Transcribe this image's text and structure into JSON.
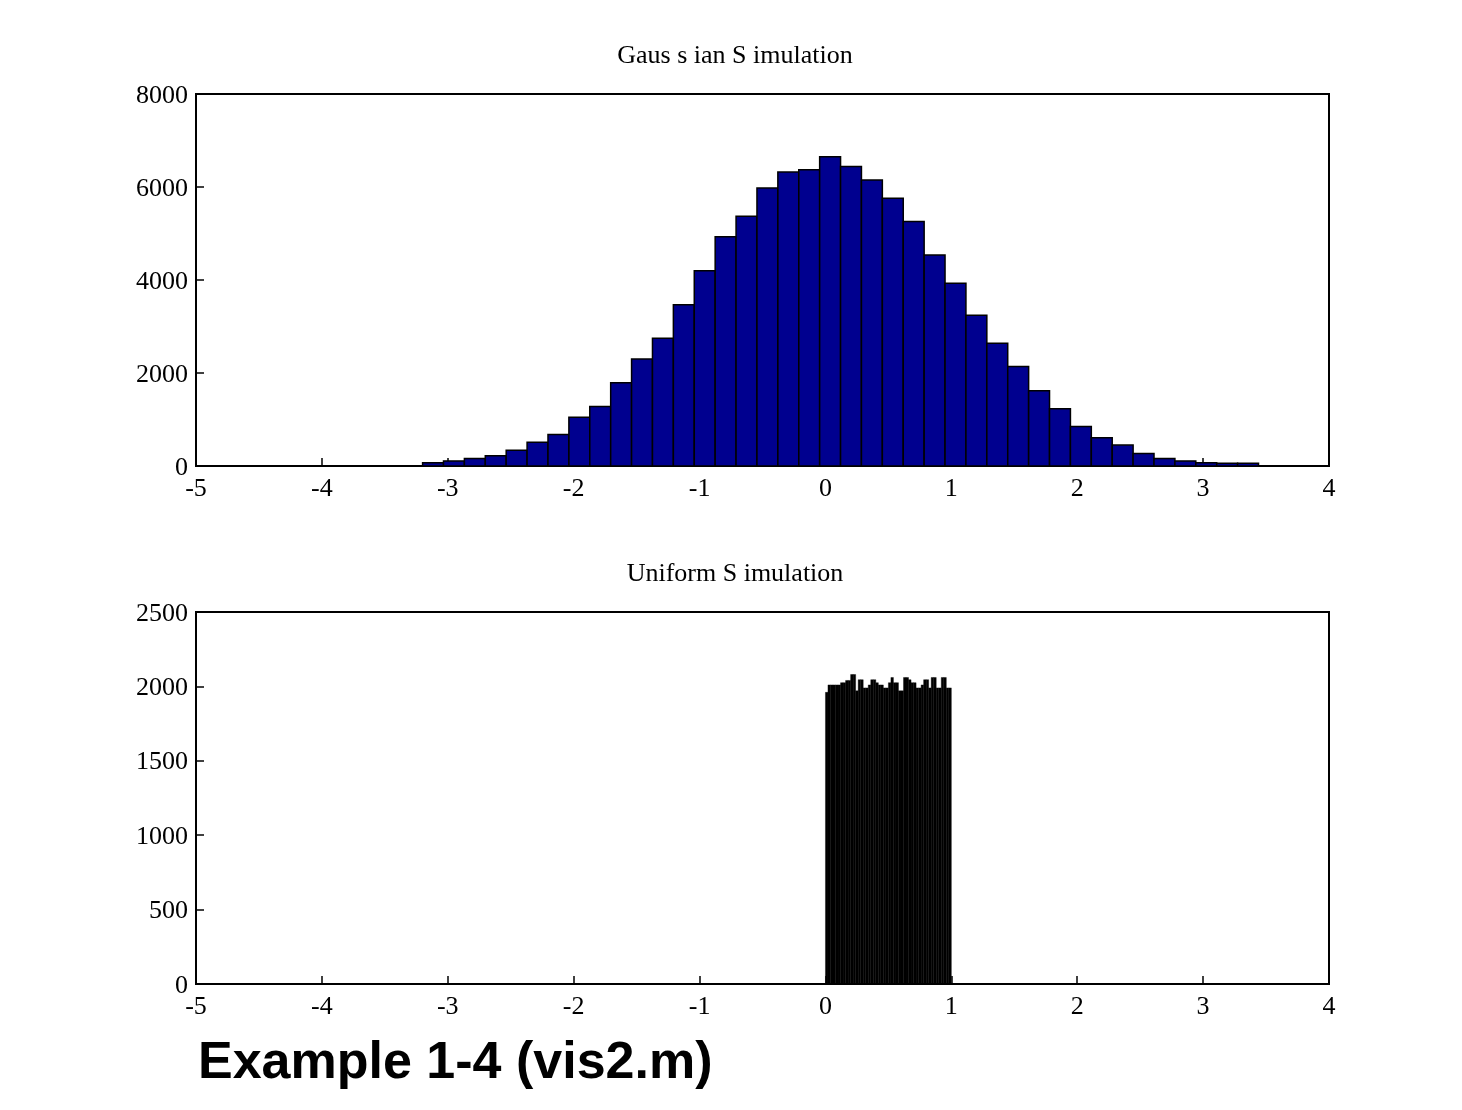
{
  "chart_data": [
    {
      "type": "histogram",
      "title": "Gaus s ian S imulation",
      "color": "#00008f",
      "bins": [
        -3.2,
        -3.034,
        -2.868,
        -2.702,
        -2.536,
        -2.37,
        -2.204,
        -2.038,
        -1.872,
        -1.706,
        -1.54,
        -1.374,
        -1.208,
        -1.042,
        -0.876,
        -0.71,
        -0.544,
        -0.378,
        -0.212,
        -0.046,
        0.12,
        0.286,
        0.452,
        0.618,
        0.784,
        0.95,
        1.116,
        1.282,
        1.448,
        1.614,
        1.78,
        1.946,
        2.112,
        2.278,
        2.444,
        2.61,
        2.776,
        2.942,
        3.108,
        3.274,
        3.44
      ],
      "values": [
        70,
        110,
        160,
        220,
        340,
        510,
        680,
        1050,
        1280,
        1790,
        2300,
        2750,
        3470,
        4200,
        4930,
        5370,
        5980,
        6320,
        6370,
        6650,
        6440,
        6150,
        5760,
        5260,
        4540,
        3930,
        3240,
        2640,
        2140,
        1620,
        1230,
        850,
        610,
        450,
        270,
        160,
        110,
        70,
        60,
        60
      ],
      "xlim": [
        -5,
        4
      ],
      "xticks": [
        -5,
        -4,
        -3,
        -2,
        -1,
        0,
        1,
        2,
        3,
        4
      ],
      "ylim": [
        0,
        8000
      ],
      "yticks": [
        0,
        2000,
        4000,
        6000,
        8000
      ]
    },
    {
      "type": "histogram",
      "title": "Uniform S imulation",
      "color": "#000000",
      "bins": [
        0,
        0.02,
        0.04,
        0.06,
        0.08,
        0.1,
        0.12,
        0.14,
        0.16,
        0.18,
        0.2,
        0.22,
        0.24,
        0.26,
        0.28,
        0.3,
        0.32,
        0.34,
        0.36,
        0.38,
        0.4,
        0.42,
        0.44,
        0.46,
        0.48,
        0.5,
        0.52,
        0.54,
        0.56,
        0.58,
        0.6,
        0.62,
        0.64,
        0.66,
        0.68,
        0.7,
        0.72,
        0.74,
        0.76,
        0.78,
        0.8,
        0.82,
        0.84,
        0.86,
        0.88,
        0.9,
        0.92,
        0.94,
        0.96,
        0.98,
        1
      ],
      "values": [
        1960,
        2010,
        2010,
        2010,
        2010,
        2010,
        2025,
        2025,
        2040,
        2040,
        2080,
        2080,
        1970,
        2045,
        2045,
        1990,
        1990,
        2010,
        2045,
        2045,
        2025,
        2010,
        2010,
        1990,
        1990,
        2025,
        2060,
        2025,
        2025,
        1970,
        1970,
        2060,
        2060,
        2045,
        2025,
        2025,
        1990,
        1990,
        2010,
        2045,
        2045,
        1990,
        2060,
        2060,
        1990,
        1990,
        2060,
        2060,
        1990,
        1990
      ],
      "xlim": [
        -5,
        4
      ],
      "xticks": [
        -5,
        -4,
        -3,
        -2,
        -1,
        0,
        1,
        2,
        3,
        4
      ],
      "ylim": [
        0,
        2500
      ],
      "yticks": [
        0,
        500,
        1000,
        1500,
        2000,
        2500
      ],
      "annotations": [
        "Example 1-4 (vis2.m)"
      ]
    }
  ]
}
